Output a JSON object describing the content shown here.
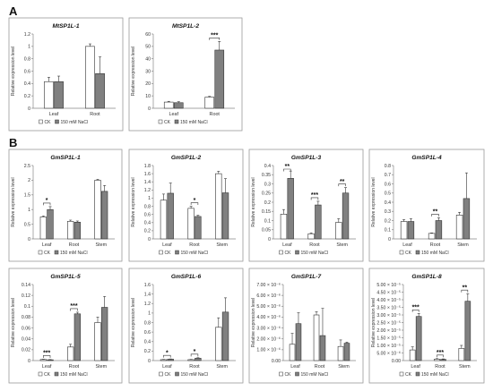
{
  "sections": [
    {
      "label": "A",
      "row": 0
    },
    {
      "label": "B",
      "row": 1
    }
  ],
  "colors": {
    "ck": "#ffffff",
    "nacl": "#808080",
    "stroke": "#333333"
  },
  "legend": {
    "ck": "CK",
    "nacl": "150 mM NaCl"
  },
  "chart_data": [
    {
      "type": "bar",
      "title": "MtSP1L-1",
      "ylabel": "Relative expression level",
      "categories": [
        "Leaf",
        "Root"
      ],
      "ylim": [
        0,
        1.2
      ],
      "yticks": [
        "0",
        "0.2",
        "0.4",
        "0.6",
        "0.8",
        "1",
        "1.2"
      ],
      "ytick_values": [
        0,
        0.2,
        0.4,
        0.6,
        0.8,
        1,
        1.2
      ],
      "series": [
        {
          "name": "CK",
          "values": [
            0.43,
            1.0
          ],
          "errors": [
            0.07,
            0.04
          ]
        },
        {
          "name": "150 mM NaCl",
          "values": [
            0.43,
            0.56
          ],
          "errors": [
            0.09,
            0.27
          ]
        }
      ],
      "significance": [],
      "grid": false,
      "legend": "bottom"
    },
    {
      "type": "bar",
      "title": "MtSP1L-2",
      "ylabel": "Relative expression level",
      "categories": [
        "Leaf",
        "Root"
      ],
      "ylim": [
        0,
        60
      ],
      "yticks": [
        "0",
        "10",
        "20",
        "30",
        "40",
        "50",
        "60"
      ],
      "ytick_values": [
        0,
        10,
        20,
        30,
        40,
        50,
        60
      ],
      "series": [
        {
          "name": "CK",
          "values": [
            5,
            9
          ],
          "errors": [
            0.6,
            0.6
          ]
        },
        {
          "name": "150 mM NaCl",
          "values": [
            4.5,
            47
          ],
          "errors": [
            0.8,
            7
          ]
        }
      ],
      "significance": [
        {
          "category": 1,
          "label": "***"
        }
      ],
      "grid": false,
      "legend": "bottom"
    },
    {
      "type": "bar",
      "title": "GmSP1L-1",
      "ylabel": "Relative expression level",
      "categories": [
        "Leaf",
        "Root",
        "Stem"
      ],
      "ylim": [
        0,
        2.5
      ],
      "yticks": [
        "0",
        "0.5",
        "1",
        "1.5",
        "2",
        "2.5"
      ],
      "ytick_values": [
        0,
        0.5,
        1,
        1.5,
        2,
        2.5
      ],
      "series": [
        {
          "name": "CK",
          "values": [
            0.75,
            0.6,
            2.0
          ],
          "errors": [
            0.03,
            0.04,
            0.03
          ]
        },
        {
          "name": "150 mM NaCl",
          "values": [
            1.0,
            0.57,
            1.62
          ],
          "errors": [
            0.1,
            0.04,
            0.2
          ]
        }
      ],
      "significance": [
        {
          "category": 0,
          "label": "*"
        }
      ],
      "grid": false,
      "legend": "bottom"
    },
    {
      "type": "bar",
      "title": "GmSP1L-2",
      "ylabel": "Relative expression level",
      "categories": [
        "Leaf",
        "Root",
        "Stem"
      ],
      "ylim": [
        0,
        1.8
      ],
      "yticks": [
        "0",
        "0.2",
        "0.4",
        "0.6",
        "0.8",
        "1",
        "1.2",
        "1.4",
        "1.6",
        "1.8"
      ],
      "ytick_values": [
        0,
        0.2,
        0.4,
        0.6,
        0.8,
        1,
        1.2,
        1.4,
        1.6,
        1.8
      ],
      "series": [
        {
          "name": "CK",
          "values": [
            0.95,
            0.75,
            1.6
          ],
          "errors": [
            0.15,
            0.05,
            0.06
          ]
        },
        {
          "name": "150 mM NaCl",
          "values": [
            1.12,
            0.55,
            1.13
          ],
          "errors": [
            0.25,
            0.03,
            0.35
          ]
        }
      ],
      "significance": [
        {
          "category": 1,
          "label": "*"
        }
      ],
      "grid": false,
      "legend": "bottom"
    },
    {
      "type": "bar",
      "title": "GmSP1L-3",
      "ylabel": "Relative expression level",
      "categories": [
        "Leaf",
        "Root",
        "Stem"
      ],
      "ylim": [
        0,
        0.4
      ],
      "yticks": [
        "0",
        "0.05",
        "0.1",
        "0.15",
        "0.2",
        "0.25",
        "0.3",
        "0.35",
        "0.4"
      ],
      "ytick_values": [
        0,
        0.05,
        0.1,
        0.15,
        0.2,
        0.25,
        0.3,
        0.35,
        0.4
      ],
      "series": [
        {
          "name": "CK",
          "values": [
            0.135,
            0.028,
            0.09
          ],
          "errors": [
            0.025,
            0.005,
            0.02
          ]
        },
        {
          "name": "150 mM NaCl",
          "values": [
            0.33,
            0.185,
            0.25
          ],
          "errors": [
            0.04,
            0.02,
            0.03
          ]
        }
      ],
      "significance": [
        {
          "category": 0,
          "label": "**"
        },
        {
          "category": 1,
          "label": "***"
        },
        {
          "category": 2,
          "label": "**"
        }
      ],
      "grid": false,
      "legend": "bottom"
    },
    {
      "type": "bar",
      "title": "GmSP1L-4",
      "ylabel": "Relative expression level",
      "categories": [
        "Leaf",
        "Root",
        "Stem"
      ],
      "ylim": [
        0,
        0.8
      ],
      "yticks": [
        "0",
        "0.1",
        "0.2",
        "0.3",
        "0.4",
        "0.5",
        "0.6",
        "0.7",
        "0.8"
      ],
      "ytick_values": [
        0,
        0.1,
        0.2,
        0.3,
        0.4,
        0.5,
        0.6,
        0.7,
        0.8
      ],
      "series": [
        {
          "name": "CK",
          "values": [
            0.19,
            0.06,
            0.26
          ],
          "errors": [
            0.02,
            0.005,
            0.03
          ]
        },
        {
          "name": "150 mM NaCl",
          "values": [
            0.19,
            0.2,
            0.44
          ],
          "errors": [
            0.03,
            0.03,
            0.28
          ]
        }
      ],
      "significance": [
        {
          "category": 1,
          "label": "**"
        }
      ],
      "grid": false,
      "legend": "bottom"
    },
    {
      "type": "bar",
      "title": "GmSP1L-5",
      "ylabel": "Relative expression level",
      "categories": [
        "Leaf",
        "Root",
        "Stem"
      ],
      "ylim": [
        0,
        0.14
      ],
      "yticks": [
        "0",
        "0.02",
        "0.04",
        "0.06",
        "0.08",
        "0.1",
        "0.12",
        "0.14"
      ],
      "ytick_values": [
        0,
        0.02,
        0.04,
        0.06,
        0.08,
        0.1,
        0.12,
        0.14
      ],
      "series": [
        {
          "name": "CK",
          "values": [
            0.002,
            0.025,
            0.07
          ],
          "errors": [
            0.0005,
            0.005,
            0.01
          ]
        },
        {
          "name": "150 mM NaCl",
          "values": [
            0.0015,
            0.086,
            0.098
          ],
          "errors": [
            0.0005,
            0.003,
            0.02
          ]
        }
      ],
      "significance": [
        {
          "category": 0,
          "label": "***"
        },
        {
          "category": 1,
          "label": "***"
        }
      ],
      "grid": false,
      "legend": "bottom"
    },
    {
      "type": "bar",
      "title": "GmSP1L-6",
      "ylabel": "Relative expression level",
      "categories": [
        "Leaf",
        "Root",
        "Stem"
      ],
      "ylim": [
        0,
        1.6
      ],
      "yticks": [
        "0",
        "0.2",
        "0.4",
        "0.6",
        "0.8",
        "1",
        "1.2",
        "1.4",
        "1.6"
      ],
      "ytick_values": [
        0,
        0.2,
        0.4,
        0.6,
        0.8,
        1,
        1.2,
        1.4,
        1.6
      ],
      "series": [
        {
          "name": "CK",
          "values": [
            0.02,
            0.02,
            0.7
          ],
          "errors": [
            0.005,
            0.005,
            0.2
          ]
        },
        {
          "name": "150 mM NaCl",
          "values": [
            0.03,
            0.05,
            1.02
          ],
          "errors": [
            0.005,
            0.01,
            0.3
          ]
        }
      ],
      "significance": [
        {
          "category": 0,
          "label": "*"
        },
        {
          "category": 1,
          "label": "*"
        }
      ],
      "grid": false,
      "legend": "bottom"
    },
    {
      "type": "bar",
      "title": "GmSP1L-7",
      "ylabel": "Relative expression level",
      "categories": [
        "Leaf",
        "Root",
        "Stem"
      ],
      "ylim": [
        0,
        7e-06
      ],
      "yticks": [
        "0.00",
        "1.00 × 10⁻⁶",
        "2.00 × 10⁻⁶",
        "3.00 × 10⁻⁶",
        "4.00 × 10⁻⁶",
        "5.00 × 10⁻⁶",
        "6.00 × 10⁻⁶",
        "7.00 × 10⁻⁶"
      ],
      "ytick_values": [
        0,
        1e-06,
        2e-06,
        3e-06,
        4e-06,
        5e-06,
        6e-06,
        7e-06
      ],
      "series": [
        {
          "name": "CK",
          "values": [
            1.5e-06,
            4.2e-06,
            1.3e-06
          ],
          "errors": [
            1e-06,
            3e-07,
            6e-07
          ]
        },
        {
          "name": "150 mM NaCl",
          "values": [
            3.4e-06,
            2.3e-06,
            1.6e-06
          ],
          "errors": [
            1e-06,
            2.5e-06,
            1e-07
          ]
        }
      ],
      "significance": [],
      "grid": false,
      "legend": "bottom"
    },
    {
      "type": "bar",
      "title": "GmSP1L-8",
      "ylabel": "Relative expression level",
      "categories": [
        "Leaf",
        "Root",
        "Stem"
      ],
      "ylim": [
        0,
        5e-05
      ],
      "yticks": [
        "0.00",
        "5.00 × 10⁻⁶",
        "1.00 × 10⁻⁵",
        "1.50 × 10⁻⁵",
        "2.00 × 10⁻⁵",
        "2.50 × 10⁻⁵",
        "3.00 × 10⁻⁵",
        "3.50 × 10⁻⁵",
        "4.00 × 10⁻⁵",
        "4.50 × 10⁻⁵",
        "5.00 × 10⁻⁵"
      ],
      "ytick_values": [
        0,
        5e-06,
        1e-05,
        1.5e-05,
        2e-05,
        2.5e-05,
        3e-05,
        3.5e-05,
        4e-05,
        4.5e-05,
        5e-05
      ],
      "series": [
        {
          "name": "CK",
          "values": [
            7e-06,
            1e-06,
            8e-06
          ],
          "errors": [
            2e-06,
            3e-07,
            2e-06
          ]
        },
        {
          "name": "150 mM NaCl",
          "values": [
            2.9e-05,
            8e-07,
            3.9e-05
          ],
          "errors": [
            2e-06,
            3e-07,
            5e-06
          ]
        }
      ],
      "significance": [
        {
          "category": 0,
          "label": "***"
        },
        {
          "category": 1,
          "label": "***"
        },
        {
          "category": 2,
          "label": "**"
        }
      ],
      "grid": false,
      "legend": "bottom"
    }
  ]
}
